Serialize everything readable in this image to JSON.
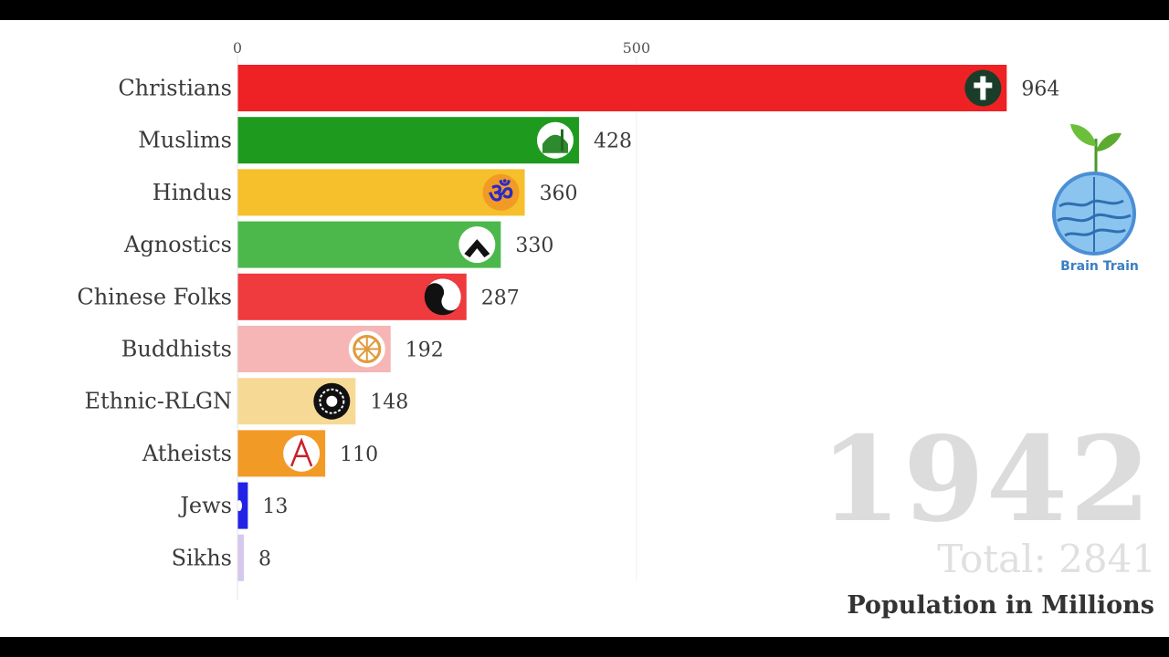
{
  "chart_data": {
    "type": "bar",
    "orientation": "horizontal",
    "categories": [
      "Christians",
      "Muslims",
      "Hindus",
      "Agnostics",
      "Chinese Folks",
      "Buddhists",
      "Ethnic-RLGN",
      "Atheists",
      "Jews",
      "Sikhs"
    ],
    "values": [
      964,
      428,
      360,
      330,
      287,
      192,
      148,
      110,
      13,
      8
    ],
    "colors": [
      "#ee2124",
      "#1e9b1e",
      "#f6bf2c",
      "#4cb84c",
      "#ef3a3e",
      "#f6b6b6",
      "#f7d996",
      "#f29a26",
      "#2222e6",
      "#d6c8ec"
    ],
    "icons": [
      "cross-icon",
      "mosque-icon",
      "om-icon",
      "agnostic-icon",
      "yin-yang-icon",
      "dharma-wheel-icon",
      "ethnic-icon",
      "atheist-icon",
      "star-of-david-icon",
      "khanda-icon"
    ],
    "xticks": [
      0,
      500
    ],
    "xlim": [
      0,
      1030
    ],
    "grid": true
  },
  "year": "1942",
  "total_label": "Total: 2841",
  "subtitle": "Population in Millions",
  "logo": {
    "text": "Brain Train"
  }
}
